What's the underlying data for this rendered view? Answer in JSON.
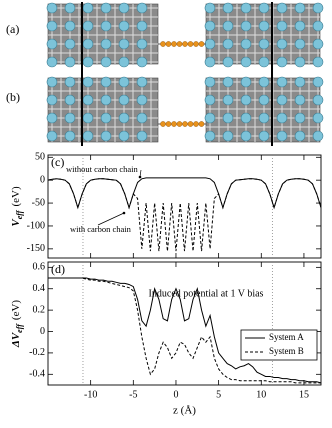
{
  "panels": [
    {
      "label": "(a)"
    },
    {
      "label": "(b)"
    }
  ],
  "chart_data": [
    {
      "type": "line",
      "panel_label": "(c)",
      "y_label": {
        "symbol": "V",
        "subscript": "eff",
        "unit": "(eV)"
      },
      "x": [
        -15,
        -14.5,
        -14,
        -13.5,
        -13,
        -12.5,
        -12,
        -11.5,
        -11,
        -10.5,
        -10,
        -9.5,
        -9,
        -8.5,
        -8,
        -7.5,
        -7,
        -6.5,
        -6,
        -5.5,
        -5,
        -4.5,
        -4,
        -3.5,
        -3,
        -2.5,
        -2,
        -1.5,
        -1,
        -0.5,
        0,
        0.5,
        1,
        1.5,
        2,
        2.5,
        3,
        3.5,
        4,
        4.5,
        5,
        5.5,
        6,
        6.5,
        7,
        7.5,
        8,
        8.5,
        9,
        9.5,
        10,
        10.5,
        11,
        11.5,
        12,
        12.5,
        13,
        13.5,
        14,
        14.5,
        15,
        15.5,
        16,
        16.5,
        17
      ],
      "series": [
        {
          "name": "without carbon chain",
          "color": "#000000",
          "dash": "solid",
          "values": [
            0,
            2,
            3,
            2,
            0,
            -8,
            -30,
            -60,
            -30,
            -8,
            0,
            2,
            3,
            3,
            2,
            1,
            0,
            -8,
            -30,
            -60,
            -30,
            -5,
            3,
            5,
            5,
            5,
            5,
            5,
            5,
            5,
            5,
            5,
            5,
            5,
            5,
            5,
            5,
            5,
            3,
            -5,
            -30,
            -60,
            -30,
            -8,
            0,
            1,
            2,
            3,
            3,
            2,
            0,
            -8,
            -30,
            -60,
            -30,
            -8,
            0,
            2,
            3,
            3,
            2,
            0,
            -8,
            -30,
            -60
          ]
        },
        {
          "name": "with carbon chain",
          "color": "#000000",
          "dash": "dashed",
          "values": [
            0,
            2,
            3,
            2,
            0,
            -8,
            -30,
            -60,
            -30,
            -8,
            0,
            2,
            3,
            3,
            2,
            1,
            0,
            -8,
            -30,
            -60,
            -30,
            -40,
            -150,
            -50,
            -155,
            -50,
            -155,
            -50,
            -155,
            -50,
            -155,
            -50,
            -155,
            -50,
            -155,
            -50,
            -155,
            -50,
            -150,
            -40,
            -30,
            -60,
            -30,
            -8,
            0,
            1,
            2,
            3,
            3,
            2,
            0,
            -8,
            -30,
            -60,
            -30,
            -8,
            0,
            2,
            3,
            3,
            2,
            0,
            -8,
            -30,
            -60
          ]
        }
      ],
      "xlim": [
        -15,
        17
      ],
      "ylim": [
        -170,
        55
      ],
      "xticks": [
        -10,
        -5,
        0,
        5,
        10,
        15
      ],
      "yticks": [
        50,
        0,
        -50,
        -100,
        -150
      ],
      "xtick_labels": false,
      "vlines": [
        -10.9,
        11.3
      ]
    },
    {
      "type": "line",
      "panel_label": "(d)",
      "y_label": {
        "symbol": "ΔV",
        "subscript": "eff",
        "unit": "(eV)"
      },
      "x_label": "z (Å)",
      "annotation": "Induced potential at 1 V bias",
      "x": [
        -15,
        -14.5,
        -14,
        -13.5,
        -13,
        -12.5,
        -12,
        -11.5,
        -11,
        -10.5,
        -10,
        -9.5,
        -9,
        -8.5,
        -8,
        -7.5,
        -7,
        -6.5,
        -6,
        -5.5,
        -5,
        -4.5,
        -4,
        -3.5,
        -3,
        -2.5,
        -2,
        -1.5,
        -1,
        -0.5,
        0,
        0.5,
        1,
        1.5,
        2,
        2.5,
        3,
        3.5,
        4,
        4.5,
        5,
        5.5,
        6,
        6.5,
        7,
        7.5,
        8,
        8.5,
        9,
        9.5,
        10,
        10.5,
        11,
        11.5,
        12,
        12.5,
        13,
        13.5,
        14,
        14.5,
        15,
        15.5,
        16,
        16.5,
        17
      ],
      "series": [
        {
          "name": "System A",
          "color": "#000000",
          "dash": "solid",
          "values": [
            0.5,
            0.5,
            0.5,
            0.5,
            0.5,
            0.5,
            0.5,
            0.5,
            0.5,
            0.5,
            0.49,
            0.49,
            0.48,
            0.48,
            0.47,
            0.47,
            0.46,
            0.45,
            0.45,
            0.44,
            0.42,
            0.3,
            0.1,
            0.05,
            0.2,
            0.4,
            0.3,
            0.12,
            0.1,
            0.3,
            0.4,
            0.3,
            0.1,
            0.12,
            0.3,
            0.4,
            0.2,
            0.05,
            0.15,
            -0.05,
            -0.2,
            -0.25,
            -0.3,
            -0.32,
            -0.35,
            -0.33,
            -0.32,
            -0.3,
            -0.33,
            -0.38,
            -0.4,
            -0.42,
            -0.42,
            -0.43,
            -0.43,
            -0.44,
            -0.44,
            -0.45,
            -0.45,
            -0.46,
            -0.46,
            -0.47,
            -0.47,
            -0.47,
            -0.48
          ]
        },
        {
          "name": "System B",
          "color": "#000000",
          "dash": "dashed",
          "values": [
            0.5,
            0.5,
            0.5,
            0.5,
            0.5,
            0.5,
            0.5,
            0.5,
            0.5,
            0.49,
            0.48,
            0.48,
            0.47,
            0.47,
            0.46,
            0.45,
            0.44,
            0.43,
            0.42,
            0.41,
            0.38,
            0.2,
            -0.05,
            -0.25,
            -0.4,
            -0.35,
            -0.2,
            -0.1,
            -0.15,
            -0.25,
            -0.2,
            -0.1,
            -0.12,
            -0.2,
            -0.25,
            -0.15,
            -0.05,
            -0.1,
            -0.05,
            -0.25,
            -0.35,
            -0.4,
            -0.43,
            -0.45,
            -0.45,
            -0.46,
            -0.46,
            -0.46,
            -0.46,
            -0.46,
            -0.46,
            -0.46,
            -0.47,
            -0.47,
            -0.47,
            -0.47,
            -0.47,
            -0.47,
            -0.48,
            -0.48,
            -0.48,
            -0.48,
            -0.48,
            -0.48,
            -0.48
          ]
        }
      ],
      "xlim": [
        -15,
        17
      ],
      "ylim": [
        -0.5,
        0.65
      ],
      "xticks": [
        -10,
        -5,
        0,
        5,
        10,
        15
      ],
      "yticks": [
        0.6,
        0.4,
        0.2,
        0,
        -0.2,
        -0.4
      ],
      "xtick_labels": true,
      "legend": "right",
      "vlines": [
        -10.9,
        11.3
      ]
    }
  ]
}
